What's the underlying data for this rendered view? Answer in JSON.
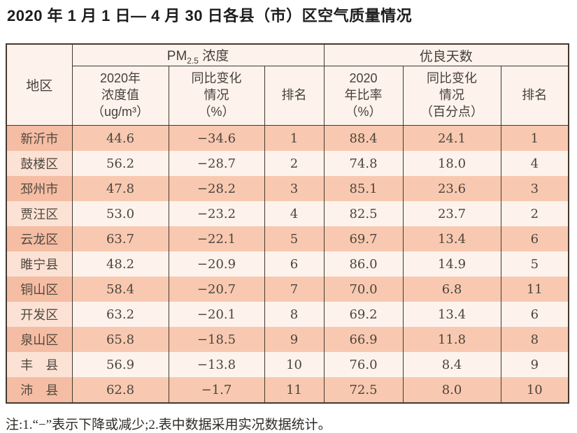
{
  "title": "2020 年 1 月 1 日— 4 月 30 日各县（市）区空气质量情况",
  "note": "注:1.“−”表示下降或减少;2.表中数据采用实况数据统计。",
  "colors": {
    "row_salmon": "#f8c9b0",
    "row_cream": "#fdf3ec",
    "region_cell_salmon": "#f5bda3",
    "region_cell_cream": "#fbe2d4",
    "header_bg": "#fdf3ec",
    "grid_border": "#413931"
  },
  "headers": {
    "region": "地区",
    "pm_group": {
      "prefix": "PM",
      "sub": "2.5",
      "suffix": " 浓度"
    },
    "gd_group": "优良天数",
    "pm_value": "2020年\n浓度值\n（ug/m³）",
    "pm_change": "同比变化\n情况\n（%）",
    "pm_rank": "排名",
    "gd_ratio": "2020\n年比率\n（%）",
    "gd_change": "同比变化\n情况\n（百分点）",
    "gd_rank": "排名"
  },
  "chart_data": {
    "type": "table",
    "title": "2020年1月1日—4月30日各县（市）区空气质量情况",
    "column_groups": [
      "地区",
      "PM2.5浓度",
      "优良天数"
    ],
    "columns": [
      "地区",
      "2020年浓度值（ug/m³）",
      "同比变化情况（%）",
      "排名",
      "2020年比率（%）",
      "同比变化情况（百分点）",
      "排名"
    ],
    "rows": [
      [
        "新沂市",
        44.6,
        -34.6,
        1,
        88.4,
        24.1,
        1
      ],
      [
        "鼓楼区",
        56.2,
        -28.7,
        2,
        74.8,
        18.0,
        4
      ],
      [
        "邳州市",
        47.8,
        -28.2,
        3,
        85.1,
        23.6,
        3
      ],
      [
        "贾汪区",
        53.0,
        -23.2,
        4,
        82.5,
        23.7,
        2
      ],
      [
        "云龙区",
        63.7,
        -22.1,
        5,
        69.7,
        13.4,
        6
      ],
      [
        "睢宁县",
        48.2,
        -20.9,
        6,
        86.0,
        14.9,
        5
      ],
      [
        "铜山区",
        58.4,
        -20.7,
        7,
        70.0,
        6.8,
        11
      ],
      [
        "开发区",
        63.2,
        -20.1,
        8,
        69.2,
        13.4,
        6
      ],
      [
        "泉山区",
        65.8,
        -18.5,
        9,
        66.9,
        11.8,
        8
      ],
      [
        "丰　县",
        56.9,
        -13.8,
        10,
        76.0,
        8.4,
        9
      ],
      [
        "沛　县",
        62.8,
        -1.7,
        11,
        72.5,
        8.0,
        10
      ]
    ],
    "note": "注:1.“−”表示下降或减少;2.表中数据采用实况数据统计。"
  }
}
